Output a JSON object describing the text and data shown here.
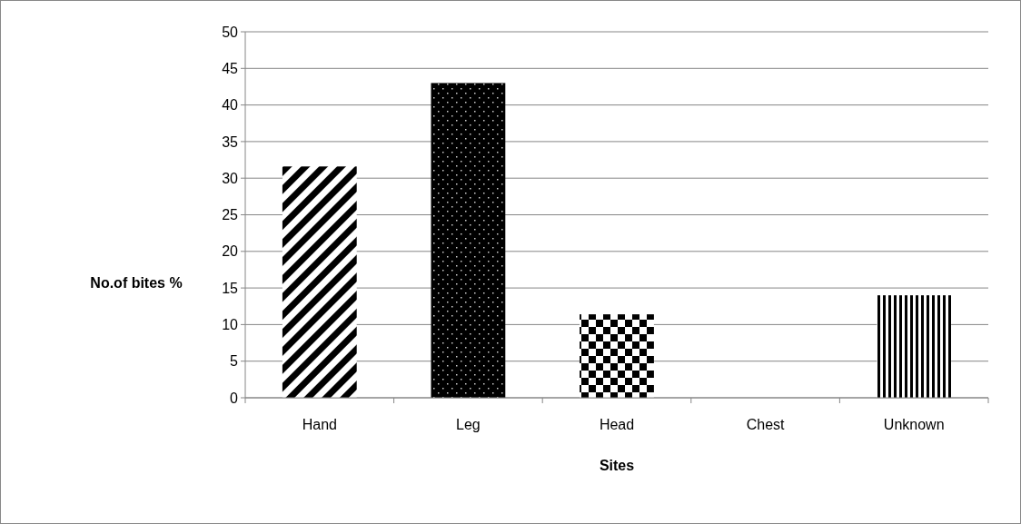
{
  "chart_data": {
    "type": "bar",
    "xlabel": "Sites",
    "ylabel": "No.of bites %",
    "categories": [
      "Hand",
      "Leg",
      "Head",
      "Chest",
      "Unknown"
    ],
    "values": [
      31.6,
      43,
      11.4,
      0,
      14
    ],
    "color": "#000000",
    "ylim": [
      0,
      50
    ],
    "yticks": [
      0,
      5,
      10,
      15,
      20,
      25,
      30,
      35,
      40,
      45,
      50
    ],
    "grid": "y"
  }
}
